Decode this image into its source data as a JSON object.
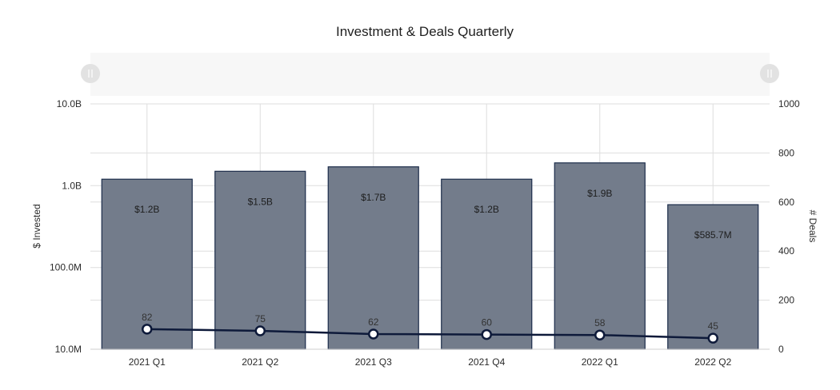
{
  "chart_data": {
    "type": "bar",
    "title": "Investment & Deals Quarterly",
    "categories": [
      "2021 Q1",
      "2021 Q2",
      "2021 Q3",
      "2021 Q4",
      "2022 Q1",
      "2022 Q2"
    ],
    "series": [
      {
        "name": "$ Invested",
        "type": "bar",
        "axis": "left",
        "scale": "log",
        "values": [
          1200000000,
          1500000000,
          1700000000,
          1200000000,
          1900000000,
          585700000
        ],
        "data_labels": [
          "$1.2B",
          "$1.5B",
          "$1.7B",
          "$1.2B",
          "$1.9B",
          "$585.7M"
        ]
      },
      {
        "name": "# Deals",
        "type": "line",
        "axis": "right",
        "values": [
          82,
          75,
          62,
          60,
          58,
          45
        ],
        "data_labels": [
          "82",
          "75",
          "62",
          "60",
          "58",
          "45"
        ]
      }
    ],
    "ylabel_left": "$ Invested",
    "ylabel_right": "# Deals",
    "ylim_left": [
      10000000,
      10000000000
    ],
    "ylim_left_ticks": [
      {
        "value": 10000000,
        "label": "10.0M"
      },
      {
        "value": 100000000,
        "label": "100.0M"
      },
      {
        "value": 1000000000,
        "label": "1.0B"
      },
      {
        "value": 10000000000,
        "label": "10.0B"
      }
    ],
    "ylim_right": [
      0,
      1000
    ],
    "ylim_right_ticks": [
      0,
      200,
      400,
      600,
      800,
      1000
    ],
    "grid": true,
    "range_navigator": true,
    "colors": {
      "bar_fill": "#737c8b",
      "bar_stroke": "#1c2c4a",
      "line": "#0e1a3a",
      "marker_fill": "#ffffff",
      "grid": "#dedede",
      "navigator_bg": "#f7f7f7",
      "navigator_handle": "#e2e2e2"
    }
  }
}
